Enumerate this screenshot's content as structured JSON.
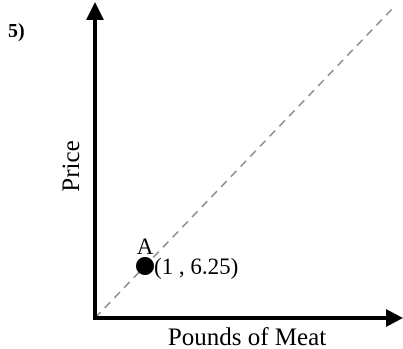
{
  "problem_number": "5)",
  "chart_data": {
    "type": "scatter",
    "xlabel": "Pounds of Meat",
    "ylabel": "Price",
    "grid": false,
    "xlim": [
      0,
      6
    ],
    "ylim": [
      0,
      37.5
    ],
    "points": [
      {
        "label": "A",
        "x": 1,
        "y": 6.25,
        "coord_text": "(1 , 6.25)"
      }
    ],
    "reference_line": {
      "style": "dashed",
      "color": "#8c8c8c",
      "slope": 6.25
    },
    "axis_color": "#000000"
  }
}
